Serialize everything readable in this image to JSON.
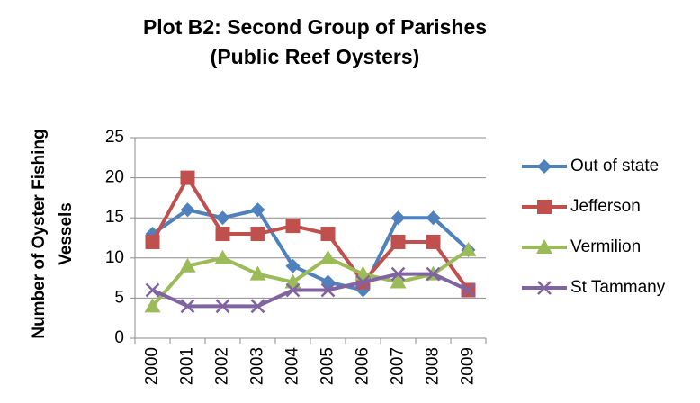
{
  "chart_data": {
    "type": "line",
    "title": [
      "Plot B2: Second Group of Parishes",
      "(Public Reef Oysters)"
    ],
    "y_label": [
      "Number of Oyster Fishing",
      "Vessels"
    ],
    "categories": [
      "2000",
      "2001",
      "2002",
      "2003",
      "2004",
      "2005",
      "2006",
      "2007",
      "2008",
      "2009"
    ],
    "series": [
      {
        "name": "Out of state",
        "color": "#4f81bd",
        "marker": "diamond",
        "values": [
          13,
          16,
          15,
          16,
          9,
          7,
          6,
          15,
          15,
          11
        ]
      },
      {
        "name": "Jefferson",
        "color": "#c0504d",
        "marker": "square",
        "values": [
          12,
          20,
          13,
          13,
          14,
          13,
          7,
          12,
          12,
          6
        ]
      },
      {
        "name": "Vermilion",
        "color": "#9bbb59",
        "marker": "triangle",
        "values": [
          4,
          9,
          10,
          8,
          7,
          10,
          8,
          7,
          8,
          11
        ]
      },
      {
        "name": "St Tammany",
        "color": "#8064a2",
        "marker": "x",
        "values": [
          6,
          4,
          4,
          4,
          6,
          6,
          7,
          8,
          8,
          6
        ]
      }
    ],
    "ylim": [
      0,
      25
    ],
    "yticks": [
      0,
      5,
      10,
      15,
      20,
      25
    ],
    "grid": true,
    "legend": "right"
  }
}
